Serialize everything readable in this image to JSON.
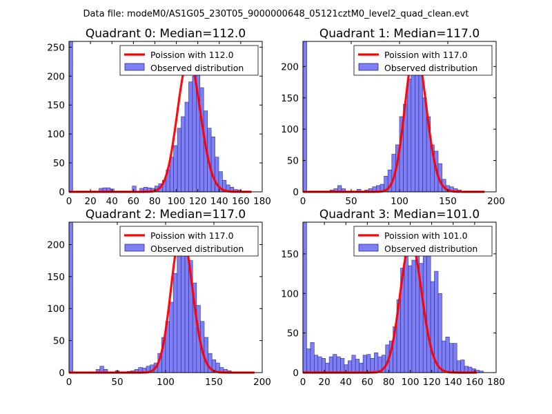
{
  "figure": {
    "suptitle": "Data file: modeM0/AS1G05_230T05_9000000648_05121cztM0_level2_quad_clean.evt"
  },
  "colors": {
    "hist_fill": "#7f7ff5",
    "hist_edge": "#2a2a8c",
    "poisson": "#ff0000"
  },
  "chart_data": [
    {
      "type": "bar",
      "title": "Quadrant 0: Median=112.0",
      "median": 112.0,
      "xlim": [
        0,
        180
      ],
      "ylim": [
        0,
        260
      ],
      "xticks": [
        0,
        20,
        40,
        60,
        80,
        100,
        120,
        140,
        160,
        180
      ],
      "yticks": [
        0,
        50,
        100,
        150,
        200,
        250
      ],
      "bin_width": 3.5,
      "bins": [
        [
          0,
          260
        ],
        [
          28,
          6
        ],
        [
          31.5,
          7
        ],
        [
          35,
          7
        ],
        [
          38.5,
          5
        ],
        [
          59,
          10
        ],
        [
          66,
          6
        ],
        [
          69.5,
          8
        ],
        [
          73,
          7
        ],
        [
          76.5,
          6
        ],
        [
          80,
          10
        ],
        [
          83.5,
          14
        ],
        [
          87,
          20
        ],
        [
          90.5,
          38
        ],
        [
          94,
          60
        ],
        [
          97.5,
          80
        ],
        [
          101,
          110
        ],
        [
          104.5,
          130
        ],
        [
          108,
          155
        ],
        [
          111.5,
          190
        ],
        [
          115,
          200
        ],
        [
          118.5,
          210
        ],
        [
          122,
          180
        ],
        [
          125.5,
          140
        ],
        [
          129,
          110
        ],
        [
          132.5,
          95
        ],
        [
          136,
          60
        ],
        [
          139.5,
          35
        ],
        [
          143,
          20
        ],
        [
          146.5,
          12
        ],
        [
          150,
          8
        ],
        [
          153.5,
          4
        ],
        [
          157,
          3
        ]
      ],
      "poisson_label": "Poission with 112.0",
      "hist_label": "Observed distribution",
      "poisson_peak": 230,
      "poisson_end": 170
    },
    {
      "type": "bar",
      "title": "Quadrant 1: Median=117.0",
      "median": 117.0,
      "xlim": [
        0,
        200
      ],
      "ylim": [
        0,
        240
      ],
      "xticks": [
        0,
        50,
        100,
        150,
        200
      ],
      "yticks": [
        0,
        50,
        100,
        150,
        200
      ],
      "bin_width": 4,
      "bins": [
        [
          0,
          240
        ],
        [
          28,
          3
        ],
        [
          32,
          5
        ],
        [
          36,
          10
        ],
        [
          40,
          5
        ],
        [
          56,
          4
        ],
        [
          64,
          3
        ],
        [
          68,
          5
        ],
        [
          72,
          8
        ],
        [
          76,
          10
        ],
        [
          80,
          12
        ],
        [
          84,
          25
        ],
        [
          88,
          35
        ],
        [
          92,
          60
        ],
        [
          96,
          75
        ],
        [
          100,
          120
        ],
        [
          104,
          140
        ],
        [
          108,
          180
        ],
        [
          112,
          200
        ],
        [
          116,
          210
        ],
        [
          120,
          190
        ],
        [
          124,
          150
        ],
        [
          128,
          120
        ],
        [
          132,
          75
        ],
        [
          136,
          65
        ],
        [
          140,
          45
        ],
        [
          144,
          20
        ],
        [
          148,
          10
        ],
        [
          152,
          8
        ],
        [
          156,
          5
        ],
        [
          160,
          3
        ]
      ],
      "poisson_label": "Poission with 117.0",
      "hist_label": "Observed distribution",
      "poisson_peak": 230,
      "poisson_end": 188
    },
    {
      "type": "bar",
      "title": "Quadrant 2: Median=117.0",
      "median": 117.0,
      "xlim": [
        0,
        200
      ],
      "ylim": [
        0,
        235
      ],
      "xticks": [
        0,
        50,
        100,
        150,
        200
      ],
      "yticks": [
        0,
        50,
        100,
        150,
        200
      ],
      "bin_width": 4,
      "bins": [
        [
          0,
          235
        ],
        [
          28,
          5
        ],
        [
          32,
          10
        ],
        [
          36,
          5
        ],
        [
          48,
          3
        ],
        [
          60,
          2
        ],
        [
          64,
          3
        ],
        [
          68,
          5
        ],
        [
          72,
          8
        ],
        [
          76,
          7
        ],
        [
          80,
          10
        ],
        [
          84,
          12
        ],
        [
          88,
          15
        ],
        [
          92,
          30
        ],
        [
          96,
          55
        ],
        [
          100,
          80
        ],
        [
          104,
          110
        ],
        [
          108,
          155
        ],
        [
          112,
          195
        ],
        [
          116,
          200
        ],
        [
          120,
          185
        ],
        [
          124,
          175
        ],
        [
          128,
          140
        ],
        [
          132,
          105
        ],
        [
          136,
          80
        ],
        [
          140,
          55
        ],
        [
          144,
          30
        ],
        [
          148,
          20
        ],
        [
          152,
          15
        ],
        [
          156,
          8
        ],
        [
          160,
          5
        ],
        [
          164,
          3
        ]
      ],
      "poisson_label": "Poission with 117.0",
      "hist_label": "Observed distribution",
      "poisson_peak": 222,
      "poisson_end": 192
    },
    {
      "type": "bar",
      "title": "Quadrant 3: Median=101.0",
      "median": 101.0,
      "xlim": [
        0,
        180
      ],
      "ylim": [
        0,
        190
      ],
      "xticks": [
        0,
        20,
        40,
        60,
        80,
        100,
        120,
        140,
        160,
        180
      ],
      "yticks": [
        0,
        50,
        100,
        150
      ],
      "bin_width": 3.5,
      "bins": [
        [
          0,
          190
        ],
        [
          3.5,
          30
        ],
        [
          7,
          38
        ],
        [
          10.5,
          22
        ],
        [
          14,
          20
        ],
        [
          17.5,
          18
        ],
        [
          21,
          12
        ],
        [
          24.5,
          20
        ],
        [
          28,
          23
        ],
        [
          31.5,
          20
        ],
        [
          35,
          18
        ],
        [
          38.5,
          10
        ],
        [
          42,
          15
        ],
        [
          45.5,
          22
        ],
        [
          49,
          17
        ],
        [
          52.5,
          12
        ],
        [
          56,
          22
        ],
        [
          59.5,
          23
        ],
        [
          63,
          18
        ],
        [
          66.5,
          25
        ],
        [
          70,
          20
        ],
        [
          73.5,
          22
        ],
        [
          77,
          35
        ],
        [
          80.5,
          40
        ],
        [
          84,
          58
        ],
        [
          87.5,
          92
        ],
        [
          91,
          132
        ],
        [
          94.5,
          160
        ],
        [
          98,
          135
        ],
        [
          101.5,
          142
        ],
        [
          105,
          170
        ],
        [
          108.5,
          138
        ],
        [
          112,
          155
        ],
        [
          115.5,
          162
        ],
        [
          119,
          115
        ],
        [
          122.5,
          128
        ],
        [
          126,
          100
        ],
        [
          129.5,
          40
        ],
        [
          133,
          45
        ],
        [
          136.5,
          37
        ],
        [
          140,
          37
        ],
        [
          143.5,
          15
        ],
        [
          147,
          16
        ],
        [
          150.5,
          8
        ],
        [
          154,
          7
        ],
        [
          157.5,
          5
        ],
        [
          161,
          3
        ],
        [
          164.5,
          2
        ]
      ],
      "poisson_label": "Poission with 101.0",
      "hist_label": "Observed distribution",
      "poisson_peak": 165,
      "poisson_end": 162
    }
  ]
}
